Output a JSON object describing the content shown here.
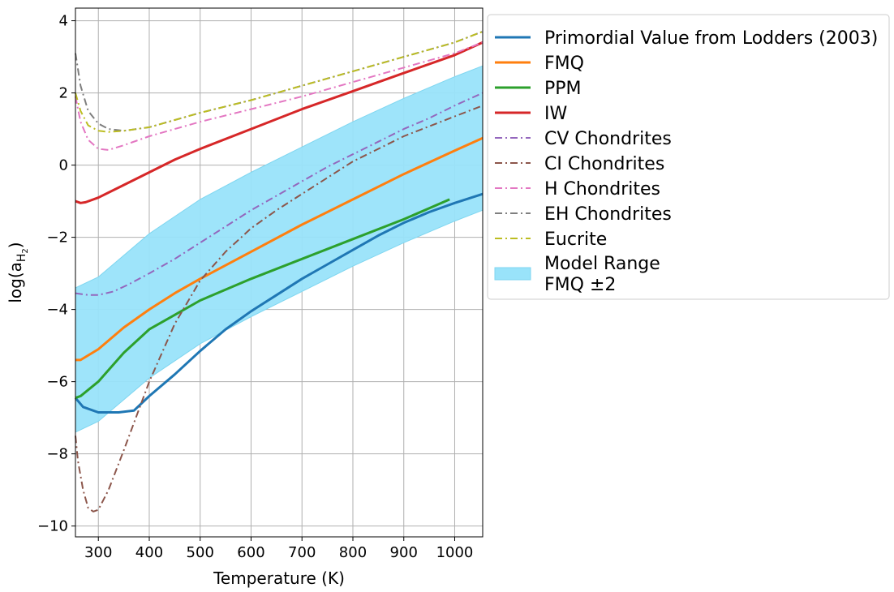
{
  "chart_data": {
    "type": "line",
    "xlabel": "Temperature (K)",
    "ylabel": "log(a",
    "ylabel_sub": "H",
    "ylabel_subsub": "2",
    "ylabel_close": ")",
    "xlim": [
      255,
      1055
    ],
    "ylim": [
      -10.3,
      4.35
    ],
    "xticks": [
      300,
      400,
      500,
      600,
      700,
      800,
      900,
      1000
    ],
    "yticks": [
      4,
      2,
      0,
      -2,
      -4,
      -6,
      -8,
      -10
    ],
    "ytick_labels": [
      "4",
      "2",
      "0",
      "−2",
      "−4",
      "−6",
      "−8",
      "−10"
    ],
    "grid": true,
    "legend_placement": "outside-right-top",
    "band": {
      "name": "Model Range",
      "name_line2": " FMQ ±2",
      "color": "#99e3fa",
      "x": [
        255,
        300,
        400,
        500,
        600,
        700,
        800,
        900,
        1000,
        1055
      ],
      "upper": [
        -3.4,
        -3.1,
        -1.9,
        -0.95,
        -0.2,
        0.5,
        1.2,
        1.85,
        2.45,
        2.75
      ],
      "lower": [
        -7.4,
        -7.1,
        -5.9,
        -4.95,
        -4.2,
        -3.5,
        -2.8,
        -2.15,
        -1.55,
        -1.25
      ]
    },
    "series": [
      {
        "name": "Primordial Value from Lodders (2003)",
        "color": "#1f77b4",
        "dash": "solid",
        "x": [
          255,
          270,
          300,
          340,
          370,
          400,
          450,
          500,
          550,
          600,
          650,
          700,
          750,
          800,
          850,
          900,
          950,
          1000,
          1055
        ],
        "y": [
          -6.45,
          -6.7,
          -6.85,
          -6.85,
          -6.8,
          -6.4,
          -5.8,
          -5.15,
          -4.55,
          -4.05,
          -3.6,
          -3.15,
          -2.75,
          -2.35,
          -1.95,
          -1.6,
          -1.3,
          -1.05,
          -0.8
        ]
      },
      {
        "name": "FMQ",
        "color": "#ff7f0e",
        "dash": "solid",
        "x": [
          255,
          265,
          300,
          350,
          400,
          450,
          500,
          600,
          700,
          800,
          900,
          1000,
          1055
        ],
        "y": [
          -5.4,
          -5.4,
          -5.1,
          -4.5,
          -4.0,
          -3.55,
          -3.15,
          -2.4,
          -1.65,
          -0.95,
          -0.25,
          0.4,
          0.75
        ]
      },
      {
        "name": "PPM",
        "color": "#2ca02c",
        "dash": "solid",
        "x": [
          255,
          265,
          300,
          350,
          400,
          450,
          500,
          600,
          700,
          800,
          900,
          990
        ],
        "y": [
          -6.45,
          -6.4,
          -6.0,
          -5.2,
          -4.55,
          -4.15,
          -3.75,
          -3.15,
          -2.6,
          -2.05,
          -1.5,
          -0.95
        ]
      },
      {
        "name": "IW",
        "color": "#d62728",
        "dash": "solid",
        "x": [
          255,
          265,
          275,
          300,
          350,
          400,
          450,
          500,
          600,
          700,
          800,
          900,
          1000,
          1055
        ],
        "y": [
          -1.0,
          -1.05,
          -1.03,
          -0.9,
          -0.55,
          -0.2,
          0.15,
          0.45,
          1.0,
          1.55,
          2.05,
          2.55,
          3.05,
          3.4
        ]
      },
      {
        "name": "CV Chondrites",
        "color": "#9467bd",
        "dash": "dashdot",
        "x": [
          255,
          280,
          300,
          330,
          360,
          400,
          450,
          500,
          550,
          600,
          650,
          700,
          750,
          800,
          850,
          900,
          950,
          1000,
          1055
        ],
        "y": [
          -3.55,
          -3.6,
          -3.6,
          -3.5,
          -3.3,
          -3.0,
          -2.6,
          -2.15,
          -1.7,
          -1.25,
          -0.85,
          -0.45,
          -0.05,
          0.3,
          0.65,
          1.0,
          1.3,
          1.65,
          2.0
        ]
      },
      {
        "name": "CI Chondrites",
        "color": "#8c564b",
        "dash": "dashdot",
        "x": [
          255,
          260,
          270,
          280,
          290,
          300,
          320,
          350,
          400,
          450,
          500,
          550,
          600,
          650,
          700,
          800,
          900,
          1000,
          1055
        ],
        "y": [
          -7.5,
          -8.2,
          -9.0,
          -9.5,
          -9.6,
          -9.55,
          -9.0,
          -7.9,
          -6.0,
          -4.4,
          -3.2,
          -2.4,
          -1.75,
          -1.25,
          -0.8,
          0.1,
          0.8,
          1.35,
          1.65
        ]
      },
      {
        "name": "H Chondrites",
        "color": "#e377c2",
        "dash": "dashdot",
        "x": [
          255,
          265,
          280,
          300,
          320,
          350,
          400,
          450,
          500,
          600,
          700,
          800,
          900,
          1000,
          1055
        ],
        "y": [
          1.9,
          1.2,
          0.7,
          0.45,
          0.42,
          0.55,
          0.8,
          1.0,
          1.2,
          1.55,
          1.9,
          2.3,
          2.7,
          3.1,
          3.4
        ]
      },
      {
        "name": "EH Chondrites",
        "color": "#7f7f7f",
        "dash": "dashdot",
        "x": [
          255,
          265,
          280,
          300,
          320,
          350,
          400,
          450,
          500,
          600,
          700,
          800,
          900,
          1000,
          1055
        ],
        "y": [
          3.1,
          2.2,
          1.5,
          1.15,
          1.0,
          0.95,
          1.05,
          1.25,
          1.45,
          1.8,
          2.2,
          2.6,
          3.0,
          3.4,
          3.7
        ]
      },
      {
        "name": "Eucrite",
        "color": "#bcbd22",
        "dash": "dashdot",
        "x": [
          255,
          265,
          280,
          300,
          320,
          350,
          400,
          450,
          500,
          600,
          700,
          800,
          900,
          1000,
          1055
        ],
        "y": [
          2.0,
          1.5,
          1.1,
          0.95,
          0.92,
          0.95,
          1.05,
          1.25,
          1.45,
          1.8,
          2.2,
          2.6,
          3.0,
          3.4,
          3.7
        ]
      }
    ]
  }
}
